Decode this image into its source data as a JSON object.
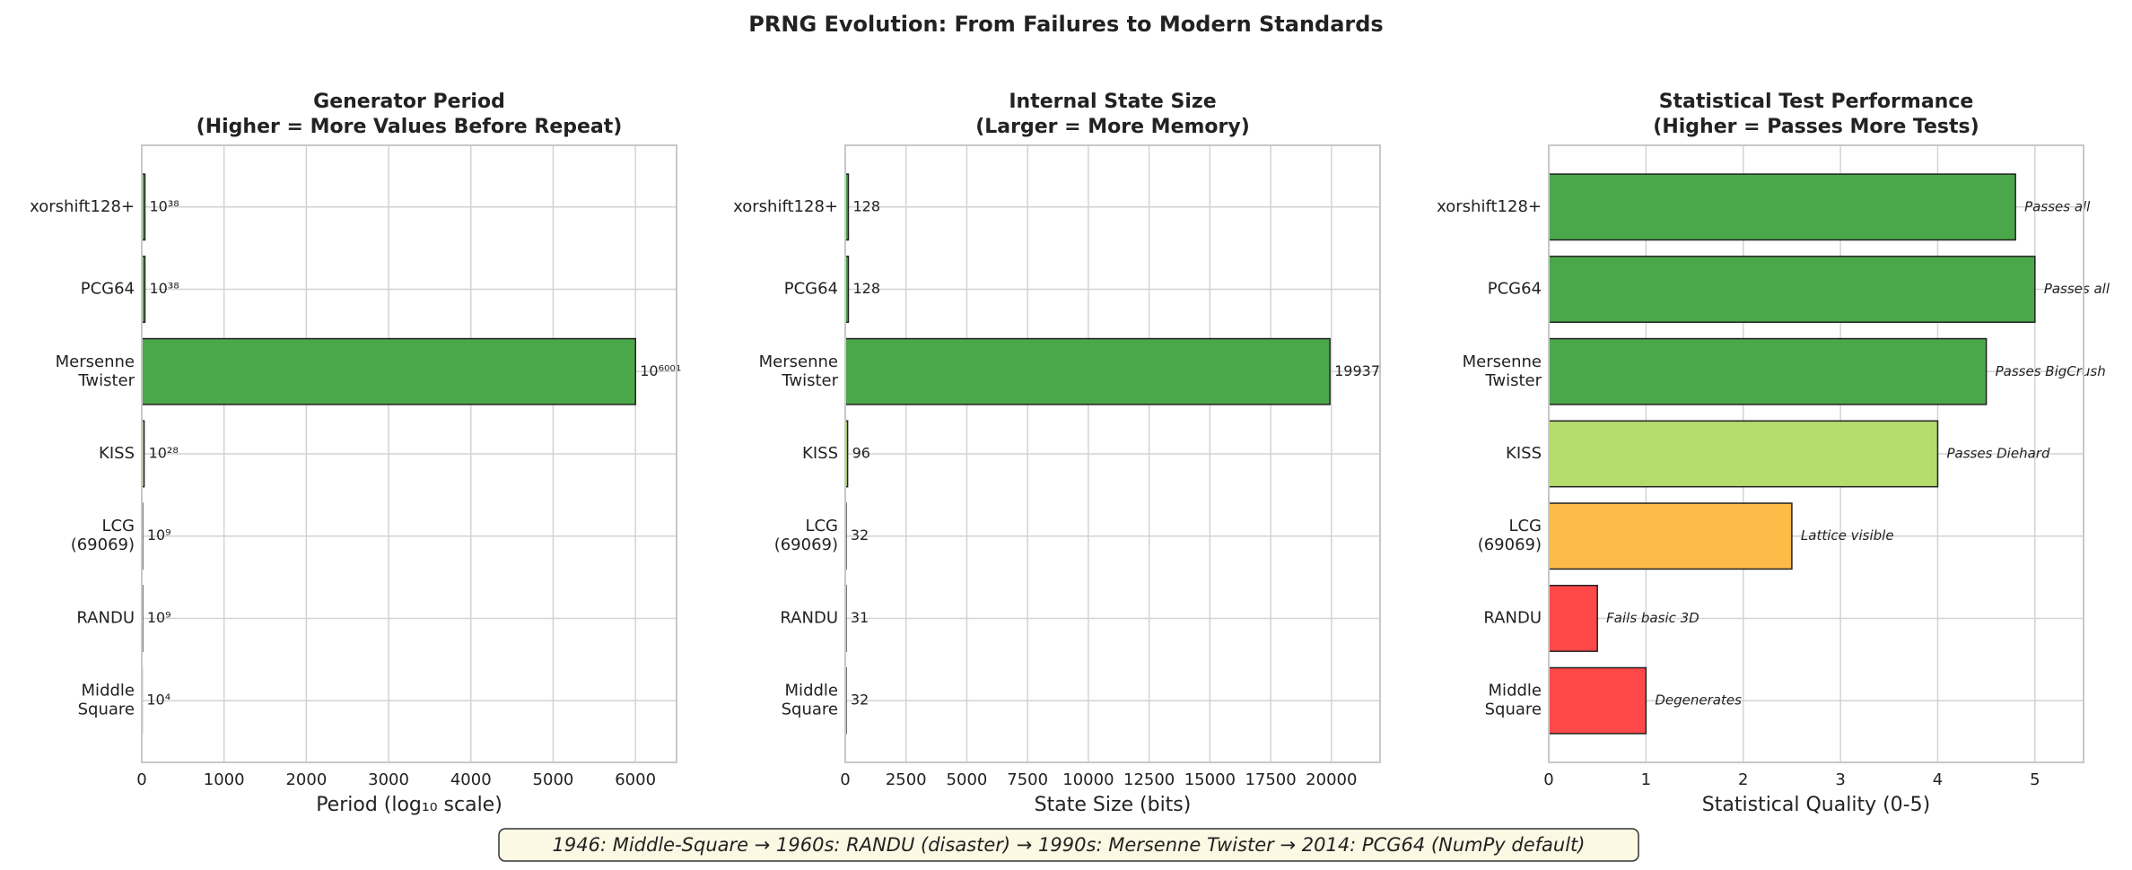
{
  "title": "PRNG Evolution: From Failures to Modern Standards",
  "footnote": "1946: Middle-Square → 1960s: RANDU (disaster) → 1990s: Mersenne Twister → 2014: PCG64 (NumPy default)",
  "chart_data": [
    {
      "type": "barh",
      "title": "Generator Period\n(Higher = More Values Before Repeat)",
      "categories": [
        "xorshift128+",
        "PCG64",
        "Mersenne\nTwister",
        "KISS",
        "LCG\n(69069)",
        "RANDU",
        "Middle\nSquare"
      ],
      "values": [
        38,
        38,
        6001,
        28,
        9,
        9,
        4
      ],
      "value_labels": [
        "10³⁸",
        "10³⁸",
        "10⁶⁰⁰¹",
        "10²⁸",
        "10⁹",
        "10⁹",
        "10⁴"
      ],
      "colors": [
        "#4aa84a",
        "#4aa84a",
        "#4aa84a",
        "#b3dc6c",
        "#fdbb47",
        "#ff4848",
        "#ff4848"
      ],
      "xlim": [
        0,
        6500
      ],
      "xticks": [
        0,
        1000,
        2000,
        3000,
        4000,
        5000,
        6000
      ],
      "xlabel": "Period (log₁₀ scale)",
      "grid": true
    },
    {
      "type": "barh",
      "title": "Internal State Size\n(Larger = More Memory)",
      "categories": [
        "xorshift128+",
        "PCG64",
        "Mersenne\nTwister",
        "KISS",
        "LCG\n(69069)",
        "RANDU",
        "Middle\nSquare"
      ],
      "values": [
        128,
        128,
        19937,
        96,
        32,
        31,
        32
      ],
      "colors": [
        "#4aa84a",
        "#4aa84a",
        "#4aa84a",
        "#b3dc6c",
        "#fdbb47",
        "#ff4848",
        "#ff4848"
      ],
      "xlim": [
        0,
        22000
      ],
      "xticks": [
        0,
        2500,
        5000,
        7500,
        10000,
        12500,
        15000,
        17500,
        20000
      ],
      "xlabel": "State Size (bits)",
      "grid": true
    },
    {
      "type": "barh",
      "title": "Statistical Test Performance\n(Higher = Passes More Tests)",
      "categories": [
        "xorshift128+",
        "PCG64",
        "Mersenne\nTwister",
        "KISS",
        "LCG\n(69069)",
        "RANDU",
        "Middle\nSquare"
      ],
      "values": [
        4.8,
        5,
        4.5,
        4,
        2.5,
        0.5,
        1
      ],
      "annotations": [
        "Passes all",
        "Passes all",
        "Passes BigCrush",
        "Passes Diehard",
        "Lattice visible",
        "Fails basic 3D",
        "Degenerates"
      ],
      "colors": [
        "#4aa84a",
        "#4aa84a",
        "#4aa84a",
        "#b3dc6c",
        "#fdbb47",
        "#ff4848",
        "#ff4848"
      ],
      "xlim": [
        0,
        5.5
      ],
      "xticks": [
        0,
        1,
        2,
        3,
        4,
        5
      ],
      "xlabel": "Statistical Quality (0-5)",
      "grid": true
    }
  ]
}
